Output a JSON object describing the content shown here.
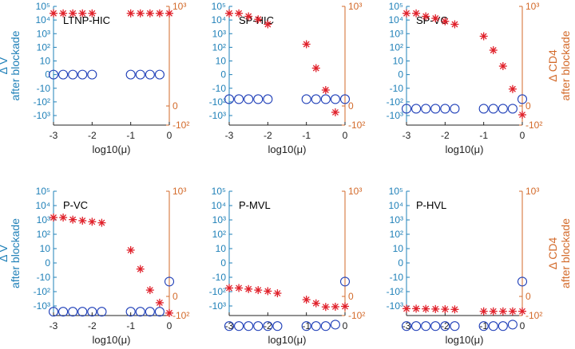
{
  "chart_data": {
    "type": "scatter",
    "xlabel": "log10(μ)",
    "xlim": [
      -3,
      0
    ],
    "x_ticks": [
      "-3",
      "-2",
      "-1",
      "0"
    ],
    "left_axis": {
      "label_line1": "Δ V",
      "label_line2": "after blockade",
      "tick_labels": [
        "10⁵",
        "10⁴",
        "10³",
        "10²",
        "10",
        "0",
        "-10",
        "-10²",
        "-10³"
      ],
      "color": "#1f80b8"
    },
    "right_axis": {
      "label_line1": "Δ CD4",
      "label_line2": "after blockade",
      "tick_labels": [
        "10³",
        "0",
        "-10²"
      ],
      "color": "#d36a2a"
    },
    "series_styles": {
      "delta_v": {
        "marker": "circle",
        "color": "#1f3fb8"
      },
      "delta_cd4": {
        "marker": "asterisk",
        "color": "#e0202a"
      }
    },
    "x": [
      -3,
      -2.75,
      -2.5,
      -2.25,
      -2,
      -1.75,
      -1,
      -0.75,
      -0.5,
      -0.25,
      0
    ],
    "panels": [
      {
        "title": "LTNP-HIC",
        "x": [
          -3,
          -2.75,
          -2.5,
          -2.25,
          -2,
          -1,
          -0.75,
          -0.5,
          -0.25
        ],
        "delta_v_level": [
          5,
          5,
          5,
          5,
          5,
          5,
          5,
          5,
          5
        ],
        "x_cd4": [
          -3,
          -2.75,
          -2.5,
          -2.25,
          -2,
          -1,
          -0.75,
          -0.5,
          -0.25,
          0
        ],
        "delta_cd4_level": [
          0.07,
          0.07,
          0.07,
          0.07,
          0.07,
          0.07,
          0.07,
          0.07,
          0.07,
          0.07
        ]
      },
      {
        "title": "SP-HIC",
        "x": [
          -3,
          -2.75,
          -2.5,
          -2.25,
          -2,
          -1,
          -0.75,
          -0.5,
          -0.25,
          0
        ],
        "delta_v_level": [
          6.8,
          6.8,
          6.8,
          6.8,
          6.8,
          6.8,
          6.8,
          6.8,
          6.8,
          6.8
        ],
        "x_cd4": [
          -3,
          -2.75,
          -2.5,
          -2.25,
          -2,
          -1,
          -0.75,
          -0.5,
          -0.25
        ],
        "delta_cd4_level": [
          0.07,
          0.07,
          0.1,
          0.13,
          0.18,
          0.38,
          0.62,
          0.84,
          1.33
        ]
      },
      {
        "title": "SP-VC",
        "x": [
          -3,
          -2.75,
          -2.5,
          -2.25,
          -2,
          -1.75,
          -1,
          -0.75,
          -0.5,
          -0.25,
          0
        ],
        "delta_v_level": [
          7.5,
          7.5,
          7.5,
          7.5,
          7.5,
          7.5,
          7.5,
          7.5,
          7.5,
          7.5,
          6.8
        ],
        "x_cd4": [
          -3,
          -2.75,
          -2.5,
          -2.25,
          -2,
          -1.75,
          -1,
          -0.75,
          -0.5,
          -0.25,
          0
        ],
        "delta_cd4_level": [
          0.07,
          0.07,
          0.1,
          0.12,
          0.15,
          0.18,
          0.3,
          0.44,
          0.6,
          0.83,
          1.46
        ]
      },
      {
        "title": "P-VC",
        "x": [
          -3,
          -2.75,
          -2.5,
          -2.25,
          -2,
          -1.75,
          -1,
          -0.75,
          -0.5,
          -0.25,
          0
        ],
        "delta_v_level": [
          8.4,
          8.4,
          8.4,
          8.4,
          8.4,
          8.4,
          8.4,
          8.4,
          8.4,
          8.4,
          6.3
        ],
        "x_cd4": [
          -3,
          -2.75,
          -2.5,
          -2.25,
          -2,
          -1.75,
          -1,
          -0.75,
          -0.5,
          -0.25,
          0
        ],
        "delta_cd4_level": [
          0.25,
          0.25,
          0.27,
          0.28,
          0.29,
          0.3,
          0.56,
          0.74,
          0.94,
          1.33,
          1.87
        ]
      },
      {
        "title": "P-MVL",
        "x": [
          -3,
          -2.75,
          -2.5,
          -2.25,
          -2,
          -1.75,
          -1,
          -0.75,
          -0.5,
          -0.25,
          0
        ],
        "delta_v_level": [
          9.4,
          9.4,
          9.4,
          9.4,
          9.4,
          9.4,
          9.4,
          9.4,
          9.4,
          9.3,
          6.3
        ],
        "x_cd4": [
          -3,
          -2.75,
          -2.5,
          -2.25,
          -2,
          -1.75,
          -1,
          -0.75,
          -0.5,
          -0.25,
          0
        ],
        "delta_cd4_level": [
          0.92,
          0.92,
          0.93,
          0.94,
          0.95,
          0.97,
          1.17,
          1.36,
          1.55,
          1.54,
          1.52
        ]
      },
      {
        "title": "P-HVL",
        "x": [
          -3,
          -2.75,
          -2.5,
          -2.25,
          -2,
          -1.75,
          -1,
          -0.75,
          -0.5,
          -0.25,
          0
        ],
        "delta_v_level": [
          9.4,
          9.4,
          9.4,
          9.4,
          9.4,
          9.4,
          9.4,
          9.4,
          9.4,
          9.3,
          6.3
        ],
        "x_cd4": [
          -3,
          -2.75,
          -2.5,
          -2.25,
          -2,
          -1.75,
          -1,
          -0.75,
          -0.5,
          -0.25,
          0
        ],
        "delta_cd4_level": [
          1.64,
          1.64,
          1.65,
          1.66,
          1.67,
          1.68,
          1.78,
          1.78,
          1.78,
          1.78,
          1.78
        ]
      }
    ]
  }
}
